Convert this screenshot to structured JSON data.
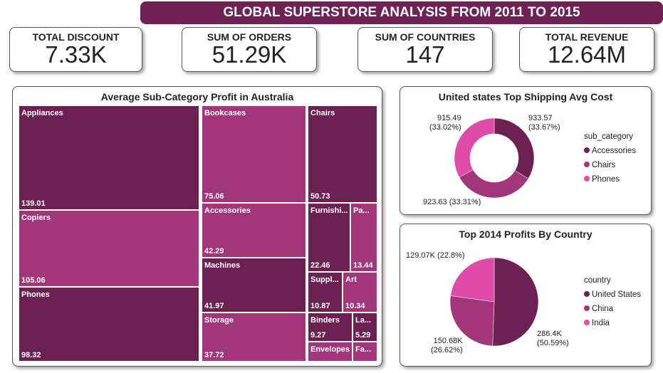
{
  "header": {
    "title": "GLOBAL SUPERSTORE ANALYSIS FROM 2011 TO 2015"
  },
  "kpis": [
    {
      "label": "TOTAL DISCOUNT",
      "value": "7.33K"
    },
    {
      "label": "SUM OF ORDERS",
      "value": "51.29K"
    },
    {
      "label": "SUM OF COUNTRIES",
      "value": "147"
    },
    {
      "label": "TOTAL REVENUE",
      "value": "12.64M"
    }
  ],
  "colors": {
    "dark": "#6d2152",
    "mid": "#a3367a",
    "pink": "#e04aa8"
  },
  "chart_data": [
    {
      "type": "treemap",
      "title": "Average Sub-Category Profit in Australia",
      "items": [
        {
          "name": "Appliances",
          "label": "Appliances",
          "value": 139.01,
          "value_label": "139.01"
        },
        {
          "name": "Copiers",
          "label": "Copiers",
          "value": 105.06,
          "value_label": "105.06"
        },
        {
          "name": "Phones",
          "label": "Phones",
          "value": 98.32,
          "value_label": "98.32"
        },
        {
          "name": "Bookcases",
          "label": "Bookcases",
          "value": 75.06,
          "value_label": "75.06"
        },
        {
          "name": "Accessories",
          "label": "Accessories",
          "value": 42.29,
          "value_label": "42.29"
        },
        {
          "name": "Machines",
          "label": "Machines",
          "value": 41.97,
          "value_label": "41.97"
        },
        {
          "name": "Storage",
          "label": "Storage",
          "value": 37.72,
          "value_label": "37.72"
        },
        {
          "name": "Chairs",
          "label": "Chairs",
          "value": 50.73,
          "value_label": "50.73"
        },
        {
          "name": "Furnishings",
          "label": "Furnishi...",
          "value": 22.46,
          "value_label": "22.46"
        },
        {
          "name": "Paper",
          "label": "Pa...",
          "value": 13.44,
          "value_label": "13.44"
        },
        {
          "name": "Supplies",
          "label": "Suppl...",
          "value": 10.87,
          "value_label": "10.87"
        },
        {
          "name": "Art",
          "label": "Art",
          "value": 10.34,
          "value_label": "10.34"
        },
        {
          "name": "Binders",
          "label": "Binders",
          "value": 9.27,
          "value_label": "9.27"
        },
        {
          "name": "Envelopes",
          "label": "Envelopes",
          "value": null,
          "value_label": ""
        },
        {
          "name": "Labels",
          "label": "La...",
          "value": 5.29,
          "value_label": "5.29"
        },
        {
          "name": "Fasteners",
          "label": "Fa...",
          "value": null,
          "value_label": ""
        }
      ]
    },
    {
      "type": "donut",
      "title": "United states Top Shipping Avg Cost",
      "legend_title": "sub_category",
      "legend_position": "right",
      "slices": [
        {
          "name": "Accessories",
          "value": 933.57,
          "pct": 33.67,
          "value_label": "933.57",
          "pct_label": "(33.67%)"
        },
        {
          "name": "Chairs",
          "value": 923.63,
          "pct": 33.31,
          "value_label": "923.63",
          "pct_label": "(33.31%)"
        },
        {
          "name": "Phones",
          "value": 915.49,
          "pct": 33.02,
          "value_label": "915.49",
          "pct_label": "(33.02%)"
        }
      ]
    },
    {
      "type": "pie",
      "title": "Top 2014 Profits By Country",
      "legend_title": "country",
      "legend_position": "right",
      "slices": [
        {
          "name": "United States",
          "value": 286400,
          "pct": 50.59,
          "value_label": "286.4K",
          "pct_label": "(50.59%)"
        },
        {
          "name": "China",
          "value": 150680,
          "pct": 26.62,
          "value_label": "150.68K",
          "pct_label": "(26.62%)"
        },
        {
          "name": "India",
          "value": 129070,
          "pct": 22.8,
          "value_label": "129.07K",
          "pct_label": "(22.8%)"
        }
      ]
    }
  ]
}
